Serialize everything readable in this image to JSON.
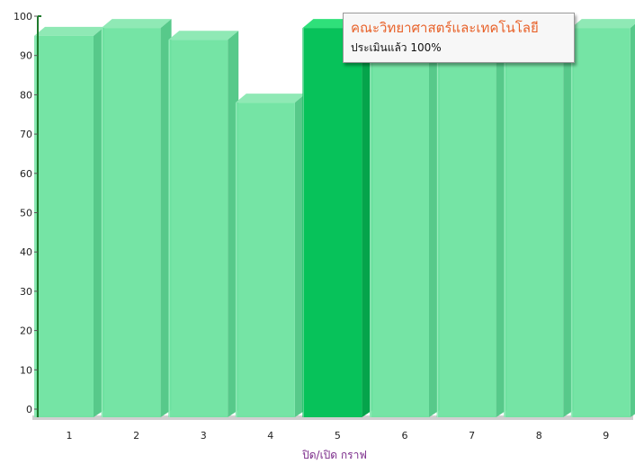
{
  "chart_data": {
    "type": "bar",
    "categories": [
      "1",
      "2",
      "3",
      "4",
      "5",
      "6",
      "7",
      "8",
      "9"
    ],
    "values": [
      95,
      97,
      94,
      78,
      97,
      97,
      97,
      97,
      97
    ],
    "highlighted_index": 4,
    "xlabel": "ปิด/เปิด กราฟ",
    "ylabel": "",
    "ylim": [
      0,
      100
    ],
    "yticks": [
      0,
      10,
      20,
      30,
      40,
      50,
      60,
      70,
      80,
      90,
      100
    ],
    "grid": false,
    "colors": {
      "bar": "#6ee3a0",
      "bar_side": "#57c98a",
      "bar_top": "#8fe9b5",
      "bar_highlight": "#07c25a",
      "bar_highlight_side": "#05a44b",
      "bar_highlight_top": "#2fe07a",
      "axis": "#1f7a2c",
      "xlabel": "#7a2a8a",
      "tooltip_title": "#e8622a"
    }
  },
  "tooltip": {
    "title": "คณะวิทยาศาสตร์และเทคโนโลยี",
    "text": "ประเมินแล้ว 100%"
  }
}
